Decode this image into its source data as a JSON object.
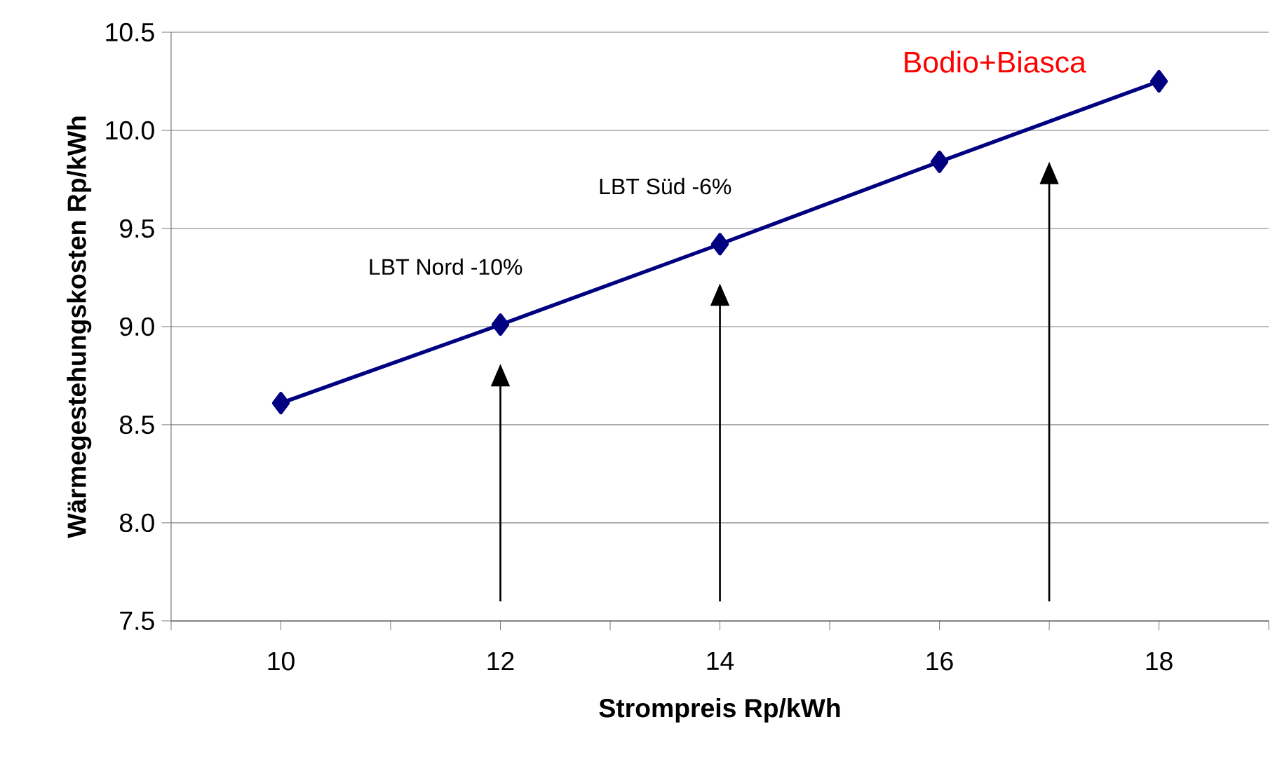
{
  "chart_data": {
    "type": "line",
    "xlabel": "Strompreis Rp/kWh",
    "ylabel": "Wärmegestehungskosten Rp/kWh",
    "x": [
      10,
      12,
      14,
      16,
      18
    ],
    "series": [
      {
        "color": "#000080",
        "values": [
          8.61,
          9.01,
          9.42,
          9.84,
          10.25
        ]
      }
    ],
    "xlim": [
      9,
      19
    ],
    "xticks": [
      {
        "value": 9,
        "label": null
      },
      10,
      {
        "value": 11,
        "label": null
      },
      12,
      {
        "value": 13,
        "label": null
      },
      14,
      {
        "value": 15,
        "label": null
      },
      16,
      {
        "value": 17,
        "label": null
      },
      18,
      {
        "value": 19,
        "label": null
      }
    ],
    "ylim": [
      7.5,
      10.5
    ],
    "yticks": [
      7.5,
      {
        "value": 8.0,
        "label": "8.0"
      },
      8.5,
      {
        "value": 9.0,
        "label": "9.0"
      },
      9.5,
      {
        "value": 10.0,
        "label": "10.0"
      },
      10.5
    ],
    "grid": "y",
    "marker": "diamond",
    "line_style": "solid",
    "annotations": [
      {
        "text": "LBT Nord -10%",
        "x": 12,
        "y": 9.01
      },
      {
        "text": "LBT Süd -6%",
        "x": 14,
        "y": 9.42
      },
      {
        "text": "Bodio+Biasca",
        "x": 17,
        "y": 10.04
      }
    ]
  }
}
